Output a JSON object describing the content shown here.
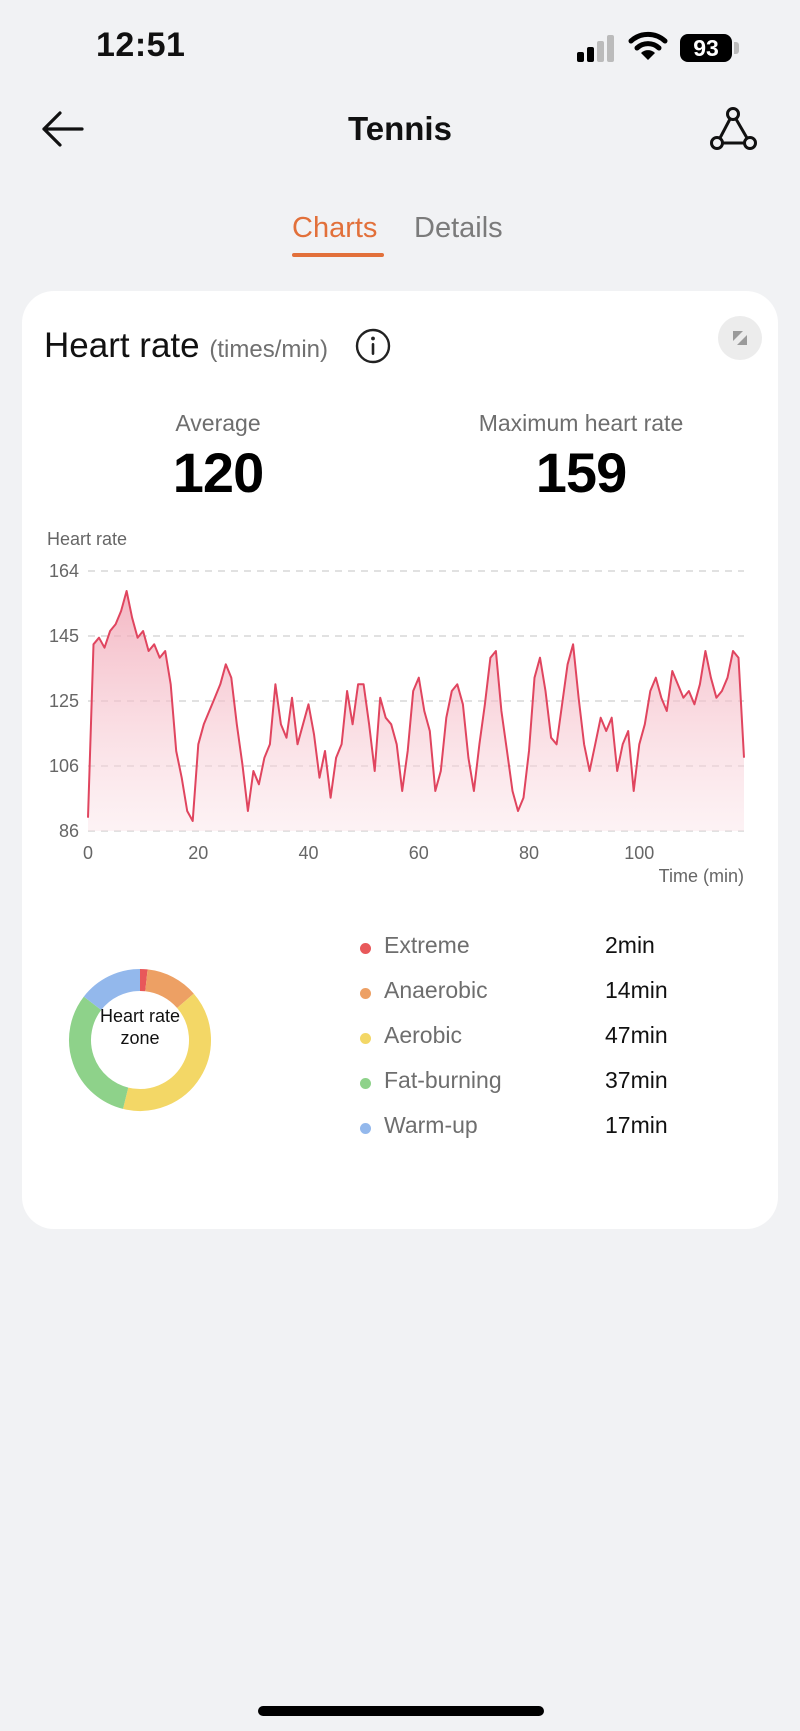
{
  "status_bar": {
    "time": "12:51",
    "battery": "93"
  },
  "nav": {
    "title": "Tennis"
  },
  "tabs": [
    {
      "label": "Charts",
      "active": true
    },
    {
      "label": "Details",
      "active": false
    }
  ],
  "heart_rate_card": {
    "title": "Heart rate",
    "unit": "(times/min)",
    "average_label": "Average",
    "average_value": "120",
    "max_label": "Maximum heart rate",
    "max_value": "159"
  },
  "chart_data": {
    "type": "area",
    "ylabel": "Heart rate",
    "xlabel": "Time (min)",
    "y_ticks": [
      164,
      145,
      125,
      106,
      86
    ],
    "x_ticks": [
      0,
      20,
      40,
      60,
      80,
      100
    ],
    "ylim": [
      86,
      164
    ],
    "xlim": [
      0,
      119
    ],
    "grid": true,
    "line_color": "#e0455f",
    "series": [
      {
        "x": [
          0,
          1,
          2,
          3,
          4,
          5,
          6,
          7,
          8,
          9,
          10,
          11,
          12,
          13,
          14,
          15,
          16,
          17,
          18,
          19,
          20,
          21,
          22,
          23,
          24,
          25,
          26,
          27,
          28,
          29,
          30,
          31,
          32,
          33,
          34,
          35,
          36,
          37,
          38,
          39,
          40,
          41,
          42,
          43,
          44,
          45,
          46,
          47,
          48,
          49,
          50,
          51,
          52,
          53,
          54,
          55,
          56,
          57,
          58,
          59,
          60,
          61,
          62,
          63,
          64,
          65,
          66,
          67,
          68,
          69,
          70,
          71,
          72,
          73,
          74,
          75,
          76,
          77,
          78,
          79,
          80,
          81,
          82,
          83,
          84,
          85,
          86,
          87,
          88,
          89,
          90,
          91,
          92,
          93,
          94,
          95,
          96,
          97,
          98,
          99,
          100,
          101,
          102,
          103,
          104,
          105,
          106,
          107,
          108,
          109,
          110,
          111,
          112,
          113,
          114,
          115,
          116,
          117,
          118,
          119
        ],
        "y": [
          90,
          142,
          144,
          141,
          146,
          148,
          152,
          158,
          150,
          144,
          146,
          140,
          142,
          138,
          140,
          130,
          110,
          102,
          92,
          89,
          112,
          118,
          122,
          126,
          130,
          136,
          132,
          118,
          106,
          92,
          104,
          100,
          108,
          112,
          130,
          118,
          114,
          126,
          112,
          118,
          124,
          115,
          102,
          110,
          96,
          108,
          112,
          128,
          118,
          130,
          130,
          118,
          104,
          126,
          120,
          118,
          112,
          98,
          110,
          128,
          132,
          122,
          116,
          98,
          104,
          120,
          128,
          130,
          124,
          108,
          98,
          112,
          124,
          138,
          140,
          122,
          110,
          98,
          92,
          96,
          110,
          132,
          138,
          128,
          114,
          112,
          124,
          136,
          142,
          126,
          112,
          104,
          112,
          120,
          116,
          120,
          104,
          112,
          116,
          98,
          112,
          118,
          128,
          132,
          126,
          122,
          134,
          130,
          126,
          128,
          124,
          130,
          140,
          132,
          126,
          128,
          132,
          140,
          138,
          108
        ]
      }
    ]
  },
  "zones": {
    "center_label": "Heart rate zone",
    "items": [
      {
        "name": "Extreme",
        "value": "2min",
        "color": "#e8585a",
        "minutes": 2
      },
      {
        "name": "Anaerobic",
        "value": "14min",
        "color": "#eda064",
        "minutes": 14
      },
      {
        "name": "Aerobic",
        "value": "47min",
        "color": "#f3d766",
        "minutes": 47
      },
      {
        "name": "Fat-burning",
        "value": "37min",
        "color": "#8ed28a",
        "minutes": 37
      },
      {
        "name": "Warm-up",
        "value": "17min",
        "color": "#93b8ec",
        "minutes": 17
      }
    ]
  }
}
